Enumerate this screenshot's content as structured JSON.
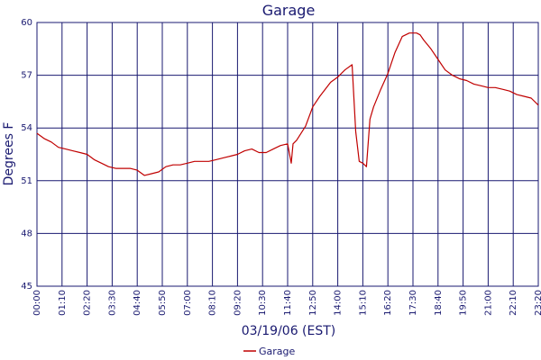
{
  "chart_data": {
    "type": "line",
    "title": "Garage",
    "xlabel": "03/19/06 (EST)",
    "ylabel": "Degrees F",
    "x_tick_labels": [
      "00:00",
      "01:10",
      "02:20",
      "03:30",
      "04:40",
      "05:50",
      "07:00",
      "08:10",
      "09:20",
      "10:30",
      "11:40",
      "12:50",
      "14:00",
      "15:10",
      "16:20",
      "17:30",
      "18:40",
      "19:50",
      "21:00",
      "22:10",
      "23:20"
    ],
    "y_tick_labels": [
      "45",
      "48",
      "51",
      "54",
      "57",
      "60"
    ],
    "xlim": [
      "00:00",
      "23:20"
    ],
    "ylim": [
      45,
      60
    ],
    "grid": true,
    "legend": "bottom-center",
    "colors": {
      "series": "#c00000",
      "axes": "#191970",
      "grid": "#191970"
    },
    "series": [
      {
        "name": "Garage",
        "x": [
          "00:00",
          "00:20",
          "00:40",
          "01:00",
          "01:20",
          "01:40",
          "02:00",
          "02:20",
          "02:40",
          "03:00",
          "03:20",
          "03:40",
          "04:00",
          "04:20",
          "04:40",
          "05:00",
          "05:20",
          "05:40",
          "06:00",
          "06:20",
          "06:40",
          "07:00",
          "07:20",
          "07:40",
          "08:00",
          "08:20",
          "08:40",
          "09:00",
          "09:20",
          "09:40",
          "10:00",
          "10:20",
          "10:40",
          "11:00",
          "11:20",
          "11:40",
          "11:50",
          "11:55",
          "12:05",
          "12:30",
          "12:50",
          "13:10",
          "13:40",
          "14:00",
          "14:20",
          "14:40",
          "14:50",
          "15:00",
          "15:10",
          "15:20",
          "15:30",
          "15:40",
          "16:00",
          "16:20",
          "16:40",
          "17:00",
          "17:20",
          "17:40",
          "17:50",
          "18:00",
          "18:20",
          "18:40",
          "19:00",
          "19:20",
          "19:40",
          "20:00",
          "20:20",
          "20:40",
          "21:00",
          "21:20",
          "21:40",
          "22:00",
          "22:20",
          "22:40",
          "23:00",
          "23:20"
        ],
        "y": [
          53.7,
          53.4,
          53.2,
          52.9,
          52.8,
          52.7,
          52.6,
          52.5,
          52.2,
          52.0,
          51.8,
          51.7,
          51.7,
          51.7,
          51.6,
          51.3,
          51.4,
          51.5,
          51.8,
          51.9,
          51.9,
          52.0,
          52.1,
          52.1,
          52.1,
          52.2,
          52.3,
          52.4,
          52.5,
          52.7,
          52.8,
          52.6,
          52.6,
          52.8,
          53.0,
          53.1,
          52.0,
          53.1,
          53.3,
          54.1,
          55.2,
          55.8,
          56.6,
          56.9,
          57.3,
          57.6,
          53.8,
          52.1,
          52.0,
          51.8,
          54.5,
          55.2,
          56.2,
          57.1,
          58.3,
          59.2,
          59.4,
          59.4,
          59.3,
          59.0,
          58.5,
          57.9,
          57.3,
          57.0,
          56.8,
          56.7,
          56.5,
          56.4,
          56.3,
          56.3,
          56.2,
          56.1,
          55.9,
          55.8,
          55.7,
          55.3
        ]
      }
    ]
  }
}
